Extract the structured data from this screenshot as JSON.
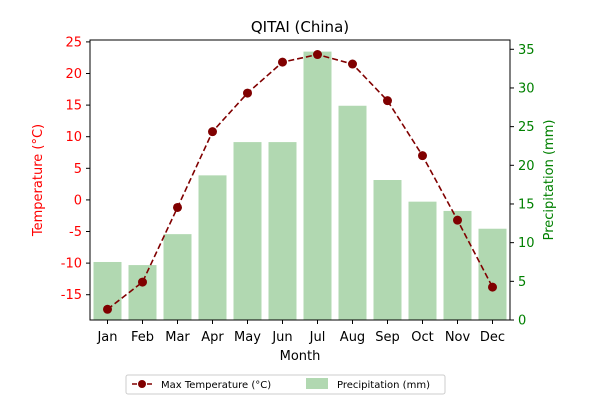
{
  "chart_data": {
    "type": "bar+line",
    "title": "QITAI (China)",
    "xlabel": "Month",
    "categories": [
      "Jan",
      "Feb",
      "Mar",
      "Apr",
      "May",
      "Jun",
      "Jul",
      "Aug",
      "Sep",
      "Oct",
      "Nov",
      "Dec"
    ],
    "left_axis": {
      "label": "Temperature (°C)",
      "color": "#ff0000",
      "ylim": [
        -19,
        25.3
      ],
      "ticks": [
        -15,
        -10,
        -5,
        0,
        5,
        10,
        15,
        20,
        25
      ]
    },
    "right_axis": {
      "label": "Precipitation (mm)",
      "color": "#008000",
      "ylim": [
        0,
        36.2
      ],
      "ticks": [
        0,
        5,
        10,
        15,
        20,
        25,
        30,
        35
      ]
    },
    "series": [
      {
        "name": "Max Temperature (°C)",
        "type": "line",
        "axis": "left",
        "color": "#800000",
        "style": "dashed",
        "marker": "circle",
        "values": [
          -17.3,
          -13.0,
          -1.2,
          10.8,
          16.9,
          21.8,
          23.0,
          21.5,
          15.7,
          7.0,
          -3.2,
          -13.8
        ]
      },
      {
        "name": "Precipitation (mm)",
        "type": "bar",
        "axis": "right",
        "color": "#b1d8b1",
        "values": [
          7.5,
          7.1,
          11.1,
          18.7,
          23.0,
          23.0,
          34.7,
          27.7,
          18.1,
          15.3,
          14.1,
          11.8
        ]
      }
    ],
    "legend_position": "bottom-center",
    "grid": false
  }
}
